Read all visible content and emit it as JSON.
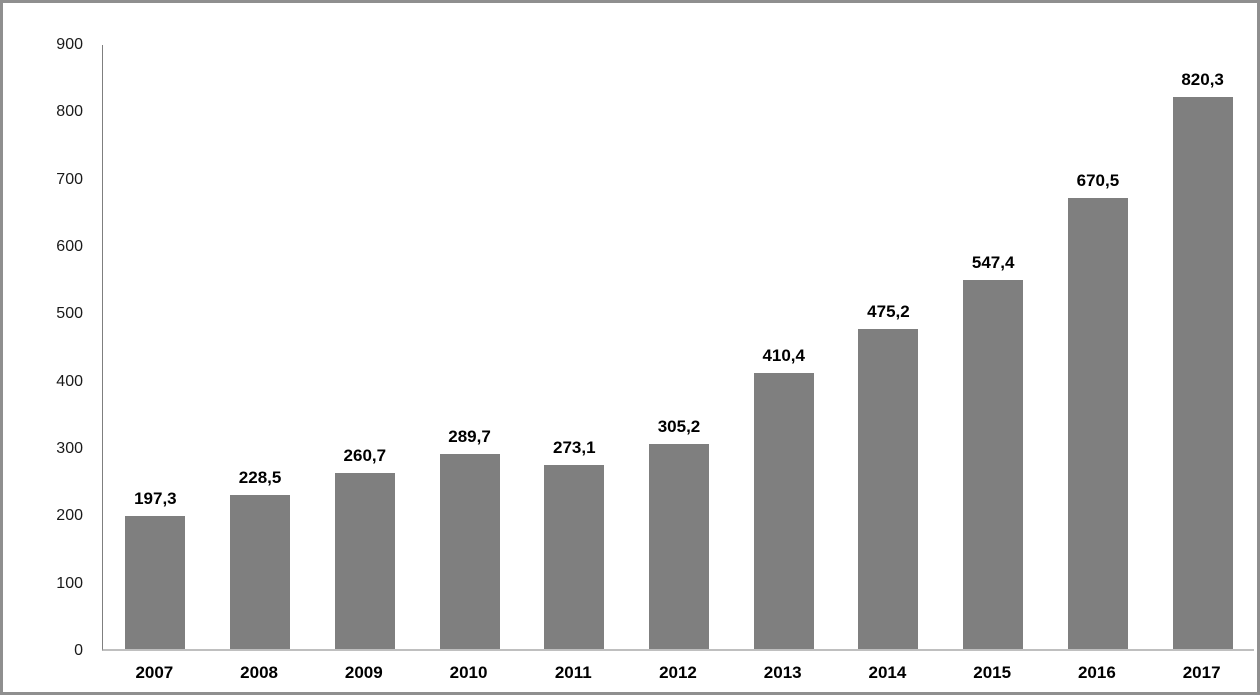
{
  "chart_data": {
    "type": "bar",
    "title": "",
    "xlabel": "",
    "ylabel": "",
    "categories": [
      "2007",
      "2008",
      "2009",
      "2010",
      "2011",
      "2012",
      "2013",
      "2014",
      "2015",
      "2016",
      "2017"
    ],
    "values": [
      197.3,
      228.5,
      260.7,
      289.7,
      273.1,
      305.2,
      410.4,
      475.2,
      547.4,
      670.5,
      820.3
    ],
    "value_labels": [
      "197,3",
      "228,5",
      "260,7",
      "289,7",
      "273,1",
      "305,2",
      "410,4",
      "475,2",
      "547,4",
      "670,5",
      "820,3"
    ],
    "ylim": [
      0,
      900
    ],
    "yticks": [
      0,
      100,
      200,
      300,
      400,
      500,
      600,
      700,
      800,
      900
    ],
    "ytick_labels": [
      "0",
      "100",
      "200",
      "300",
      "400",
      "500",
      "600",
      "700",
      "800",
      "900"
    ],
    "grid": false,
    "legend": false,
    "decimal_separator": ",",
    "colors": {
      "bar_fill": "#7F7F7F",
      "y_axis_line": "#7F7F7F",
      "x_baseline": "#BFBFBF",
      "frame_border": "#8F8F8F",
      "label_text": "#000000",
      "background": "#FFFFFF"
    }
  }
}
